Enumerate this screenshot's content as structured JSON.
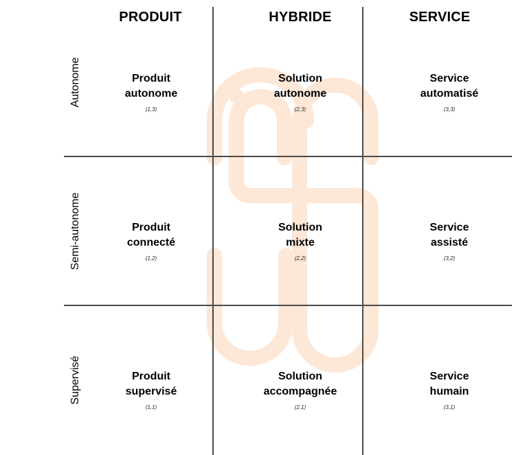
{
  "columns": [
    "PRODUIT",
    "HYBRIDE",
    "SERVICE"
  ],
  "rows": [
    "Autonome",
    "Semi-autonome",
    "Supervisé"
  ],
  "cells": [
    [
      {
        "line1": "Produit",
        "line2": "autonome",
        "coord": "(1,3)"
      },
      {
        "line1": "Solution",
        "line2": "autonome",
        "coord": "(2,3)"
      },
      {
        "line1": "Service",
        "line2": "automatisé",
        "coord": "(3,3)"
      }
    ],
    [
      {
        "line1": "Produit",
        "line2": "connecté",
        "coord": "(1,2)"
      },
      {
        "line1": "Solution",
        "line2": "mixte",
        "coord": "(2,2)"
      },
      {
        "line1": "Service",
        "line2": "assisté",
        "coord": "(3,2)"
      }
    ],
    [
      {
        "line1": "Produit",
        "line2": "supervisé",
        "coord": "(1,1)"
      },
      {
        "line1": "Solution",
        "line2": "accompagnée",
        "coord": "(2,1)"
      },
      {
        "line1": "Service",
        "line2": "humain",
        "coord": "(3,1)"
      }
    ]
  ],
  "colors": {
    "watermark": "#fde7d6",
    "gridline": "#4a4a4a"
  }
}
